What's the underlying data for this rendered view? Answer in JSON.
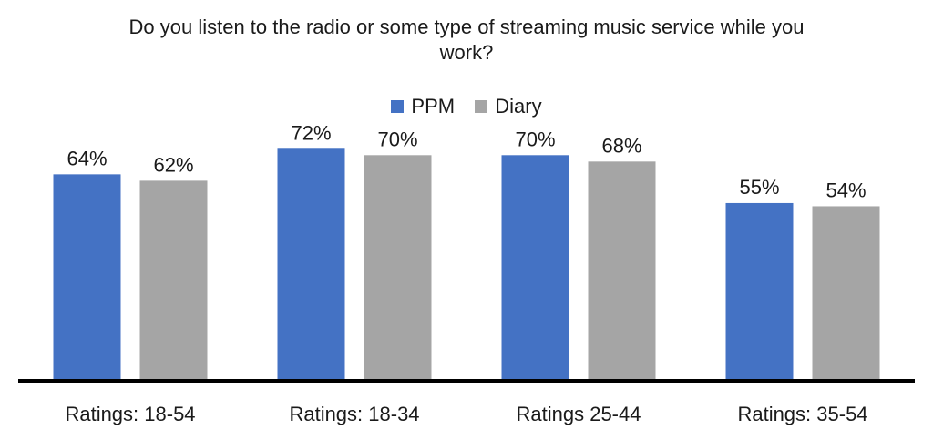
{
  "chart_data": {
    "type": "bar",
    "title_lines": [
      "Do you listen to the radio or some type of streaming music service while you",
      "work?"
    ],
    "categories": [
      "Ratings: 18-54",
      "Ratings: 18-34",
      "Ratings 25-44",
      "Ratings: 35-54"
    ],
    "series": [
      {
        "name": "PPM",
        "color": "#4472c4",
        "values": [
          64,
          72,
          70,
          55
        ],
        "labels": [
          "64%",
          "72%",
          "70%",
          "55%"
        ]
      },
      {
        "name": "Diary",
        "color": "#a5a5a5",
        "values": [
          62,
          70,
          68,
          54
        ],
        "labels": [
          "62%",
          "70%",
          "68%",
          "54%"
        ]
      }
    ],
    "ylim": [
      0,
      100
    ],
    "grid": false,
    "legend_position": "top-center",
    "axis_color": "#000000"
  }
}
